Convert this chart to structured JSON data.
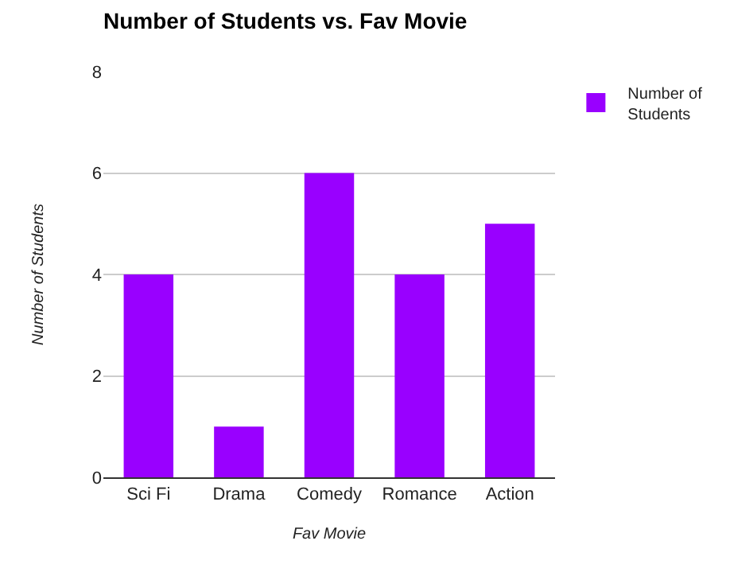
{
  "chart_data": {
    "type": "bar",
    "title": "Number of Students vs. Fav Movie",
    "xlabel": "Fav Movie",
    "ylabel": "Number of Students",
    "categories": [
      "Sci Fi",
      "Drama",
      "Comedy",
      "Romance",
      "Action"
    ],
    "series": [
      {
        "name": "Number of Students",
        "color": "#9900ff",
        "values": [
          4,
          1,
          6,
          4,
          5
        ]
      }
    ],
    "ylim": [
      0,
      8
    ],
    "yticks": [
      0,
      2,
      4,
      6,
      8
    ],
    "grid": "y",
    "legend": "top right"
  }
}
